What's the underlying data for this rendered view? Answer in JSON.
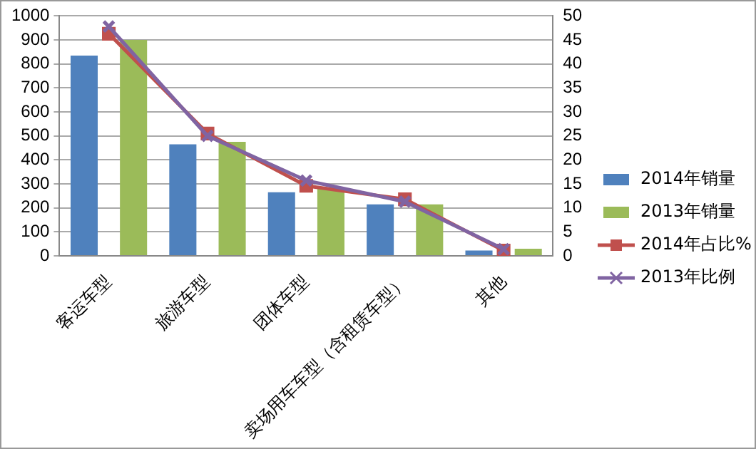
{
  "chart_data": {
    "type": "bar",
    "categories": [
      "客运车型",
      "旅游车型",
      "团体车型",
      "卖场用车车型（含租赁车型）",
      "其他"
    ],
    "series": [
      {
        "name": "2014年销量",
        "color": "#4f81bd",
        "values": [
          835,
          465,
          265,
          215,
          22
        ]
      },
      {
        "name": "2013年销量",
        "color": "#9bbb59",
        "values": [
          900,
          475,
          285,
          215,
          30
        ]
      },
      {
        "name": "2014年占比%",
        "type": "line",
        "axis": "y2",
        "color": "#c0504d",
        "marker": "square",
        "values": [
          46.3,
          25.5,
          14.6,
          11.8,
          1.1
        ]
      },
      {
        "name": "2013年比例",
        "type": "line",
        "axis": "y2",
        "color": "#8064a2",
        "marker": "cross",
        "values": [
          47.8,
          25,
          15.7,
          11.3,
          1.4
        ]
      }
    ],
    "ylim": [
      0,
      1000
    ],
    "yticks": [
      0,
      100,
      200,
      300,
      400,
      500,
      600,
      700,
      800,
      900,
      1000
    ],
    "y2lim": [
      0,
      50
    ],
    "y2ticks": [
      0,
      5,
      10,
      15,
      20,
      25,
      30,
      35,
      40,
      45,
      50
    ],
    "grid": "y",
    "legend": "right"
  }
}
